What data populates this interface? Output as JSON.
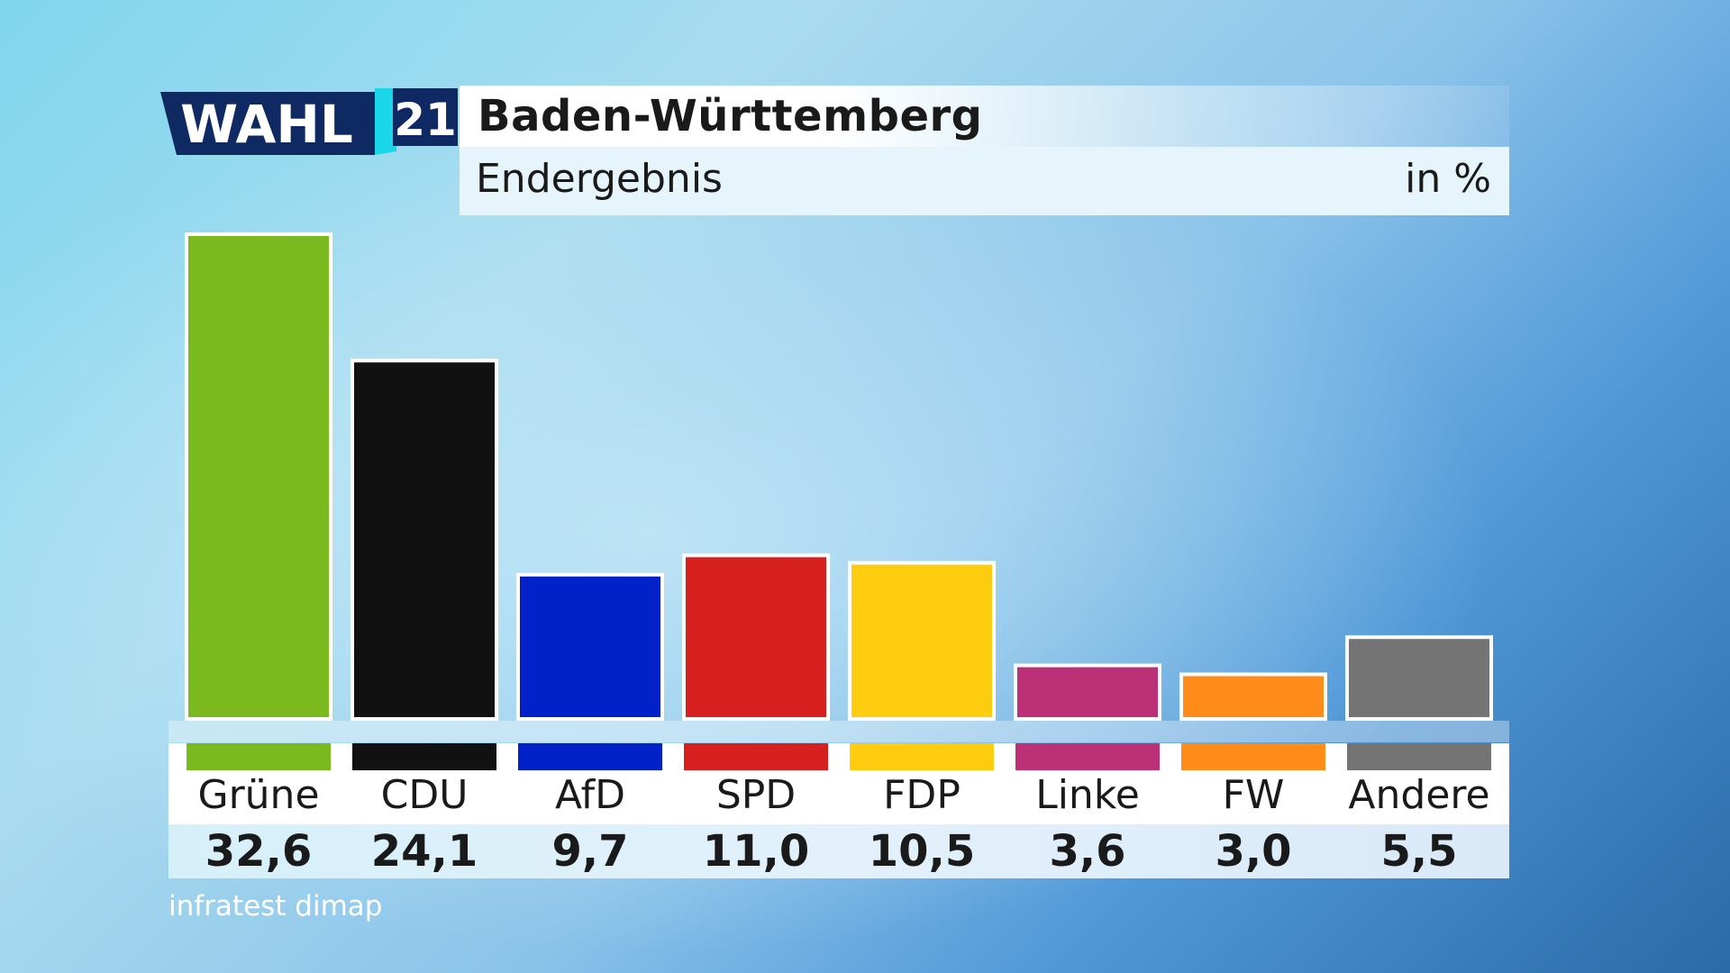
{
  "header": {
    "logo_word": "WAHL",
    "logo_year": "21",
    "title": "Baden-Württemberg",
    "subtitle": "Endergebnis",
    "unit": "in %"
  },
  "source": "infratest dimap",
  "colors": {
    "Grüne": "#7aba1e",
    "CDU": "#111111",
    "AfD": "#0022c8",
    "SPD": "#d62020",
    "FDP": "#ffcc0f",
    "Linke": "#bc3078",
    "FW": "#ff8c19",
    "Andere": "#747474"
  },
  "chart_data": {
    "type": "bar",
    "title": "Baden-Württemberg",
    "subtitle": "Endergebnis",
    "unit": "in %",
    "categories": [
      "Grüne",
      "CDU",
      "AfD",
      "SPD",
      "FDP",
      "Linke",
      "FW",
      "Andere"
    ],
    "values": [
      32.6,
      24.1,
      9.7,
      11.0,
      10.5,
      3.6,
      3.0,
      5.5
    ],
    "value_labels": [
      "32,6",
      "24,1",
      "9,7",
      "11,0",
      "10,5",
      "3,6",
      "3,0",
      "5,5"
    ],
    "grid": false,
    "legend": "none"
  }
}
